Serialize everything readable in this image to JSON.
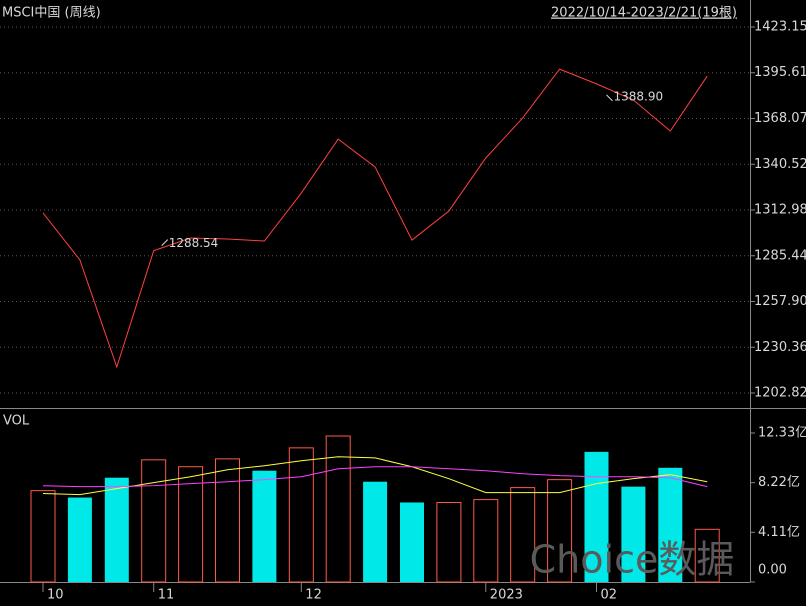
{
  "chart_data": [
    {
      "type": "line",
      "title": "MSCI中国 (周线)",
      "subtitle": "2022/10/14-2023/2/21(19根)",
      "values": [
        1311.2,
        1282.9,
        1218.5,
        1288.54,
        1296.1,
        1295.5,
        1294.3,
        1323.2,
        1355.7,
        1338.9,
        1294.9,
        1312.4,
        1344.3,
        1368.4,
        1397.8,
        1388.9,
        1379.2,
        1360.5,
        1393.6
      ],
      "value_labels": [
        null,
        null,
        null,
        "1288.54",
        null,
        null,
        null,
        null,
        null,
        null,
        null,
        null,
        null,
        null,
        null,
        "1388.90",
        null,
        null,
        null
      ],
      "color": "#ff4040",
      "ylim": [
        1202.82,
        1423.15
      ],
      "yticks": [
        1423.15,
        1395.61,
        1368.07,
        1340.52,
        1312.98,
        1285.44,
        {
          "value": 1257.9,
          "label": "1257.90"
        },
        1230.36,
        1202.82
      ],
      "grid": true
    },
    {
      "type": "bar",
      "title": "VOL",
      "categories": [
        "10",
        null,
        null,
        "11",
        null,
        null,
        null,
        "12",
        null,
        null,
        null,
        null,
        "2023",
        null,
        null,
        "02",
        null,
        null,
        null
      ],
      "values": [
        7.56,
        6.99,
        8.63,
        10.11,
        9.54,
        10.19,
        9.21,
        11.1,
        12.08,
        8.3,
        6.58,
        6.58,
        6.82,
        7.81,
        8.47,
        10.77,
        7.89,
        9.45,
        4.36
      ],
      "bar_colors": [
        "#ff5a4a",
        "#00e8e8",
        "#00e8e8",
        "#ff5a4a",
        "#ff5a4a",
        "#ff5a4a",
        "#00e8e8",
        "#ff5a4a",
        "#ff5a4a",
        "#00e8e8",
        "#00e8e8",
        "#ff5a4a",
        "#ff5a4a",
        "#ff5a4a",
        "#ff5a4a",
        "#00e8e8",
        "#00e8e8",
        "#00e8e8",
        "#ff5a4a"
      ],
      "hollow": [
        true,
        false,
        false,
        true,
        true,
        true,
        false,
        true,
        true,
        false,
        false,
        true,
        true,
        true,
        true,
        false,
        false,
        false,
        true
      ],
      "series": [
        {
          "color": "#ffff40",
          "values": [
            7.32,
            7.23,
            7.73,
            8.22,
            8.71,
            9.29,
            9.62,
            10.03,
            10.36,
            10.27,
            9.54,
            8.55,
            7.4,
            7.4,
            7.4,
            8.14,
            8.55,
            8.88,
            8.3
          ]
        },
        {
          "color": "#ff40ff",
          "values": [
            7.97,
            7.89,
            7.89,
            7.97,
            8.14,
            8.3,
            8.47,
            8.71,
            9.37,
            9.54,
            9.54,
            9.37,
            9.21,
            8.96,
            8.8,
            8.71,
            8.71,
            8.63,
            7.89
          ]
        }
      ],
      "ylim": [
        0,
        12.33
      ],
      "yticks": [
        {
          "value": 12.33,
          "label": "12.33亿"
        },
        {
          "value": 8.22,
          "label": "8.22亿"
        },
        {
          "value": 4.11,
          "label": "4.11亿"
        },
        {
          "value": 0,
          "label": "0.00"
        }
      ],
      "watermark": "Choice数据"
    }
  ]
}
